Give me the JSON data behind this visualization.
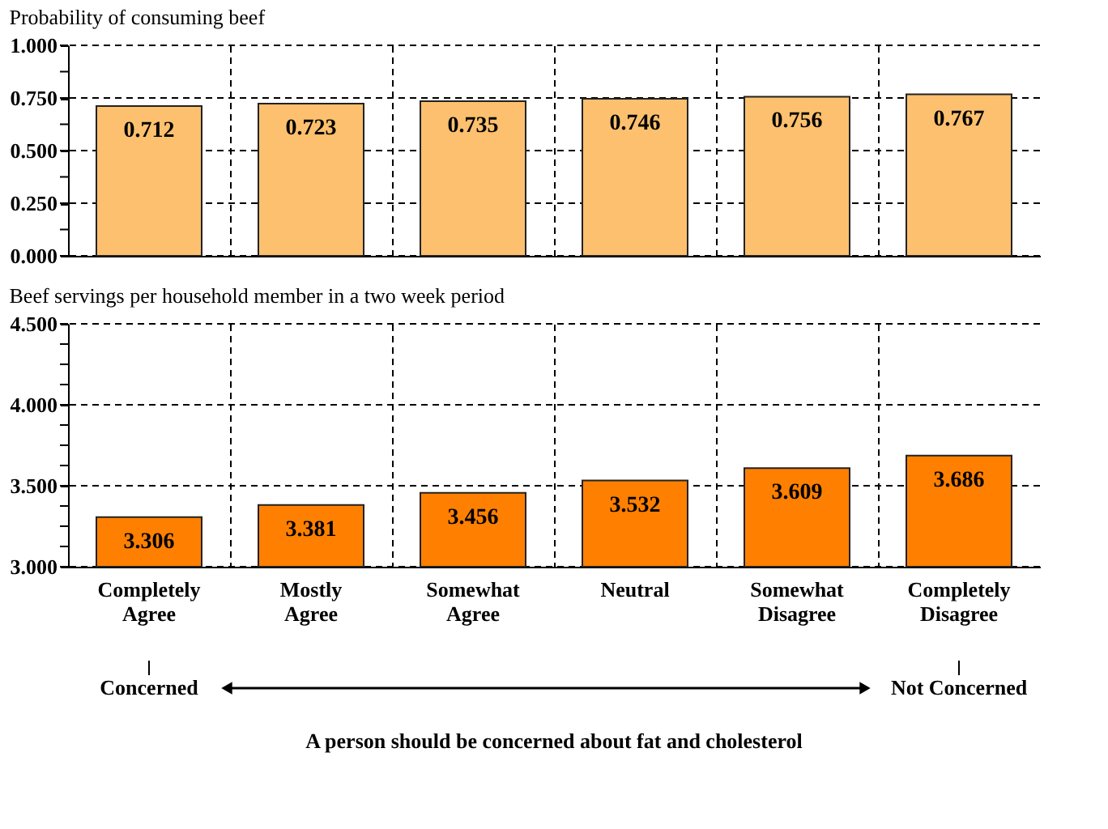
{
  "chart_data": [
    {
      "type": "bar",
      "title": "Probability of consuming beef",
      "categories": [
        null,
        null,
        null,
        null,
        null,
        null
      ],
      "values": [
        0.712,
        0.723,
        0.735,
        0.746,
        0.756,
        0.767
      ],
      "color": "#fdc06e",
      "ylim": [
        0,
        1
      ],
      "yticks": [
        {
          "value": 0,
          "label": "0.000"
        },
        {
          "value": 0.125,
          "label": null
        },
        {
          "value": 0.25,
          "label": "0.250"
        },
        {
          "value": 0.375,
          "label": null
        },
        {
          "value": 0.5,
          "label": "0.500"
        },
        {
          "value": 0.625,
          "label": null
        },
        {
          "value": 0.75,
          "label": "0.750"
        },
        {
          "value": 0.875,
          "label": null
        },
        {
          "value": 1,
          "label": "1.000"
        }
      ],
      "data_labels": true,
      "grid": true,
      "tick_labels": "y"
    },
    {
      "type": "bar",
      "title": "Beef servings per household member in a two week period",
      "xlabel": "A person should be concerned about fat and cholesterol",
      "annotations": [
        "Concerned",
        "Not Concerned"
      ],
      "categories": [
        "Completely\nAgree",
        "Mostly\nAgree",
        "Somewhat\nAgree",
        "Neutral",
        "Somewhat\nDisagree",
        "Completely\nDisagree"
      ],
      "values": [
        3.306,
        3.381,
        3.456,
        3.532,
        3.609,
        3.686
      ],
      "color": "#ff8000",
      "ylim": [
        3,
        4.5
      ],
      "yticks": [
        {
          "value": 3,
          "label": "3.000"
        },
        {
          "value": 3.125,
          "label": null
        },
        {
          "value": 3.25,
          "label": null
        },
        {
          "value": 3.375,
          "label": null
        },
        {
          "value": 3.5,
          "label": "3.500"
        },
        {
          "value": 3.625,
          "label": null
        },
        {
          "value": 3.75,
          "label": null
        },
        {
          "value": 3.875,
          "label": null
        },
        {
          "value": 4,
          "label": "4.000"
        },
        {
          "value": 4.125,
          "label": null
        },
        {
          "value": 4.25,
          "label": null
        },
        {
          "value": 4.375,
          "label": null
        },
        {
          "value": 4.5,
          "label": "4.500"
        }
      ],
      "data_labels": true,
      "grid": true
    }
  ]
}
